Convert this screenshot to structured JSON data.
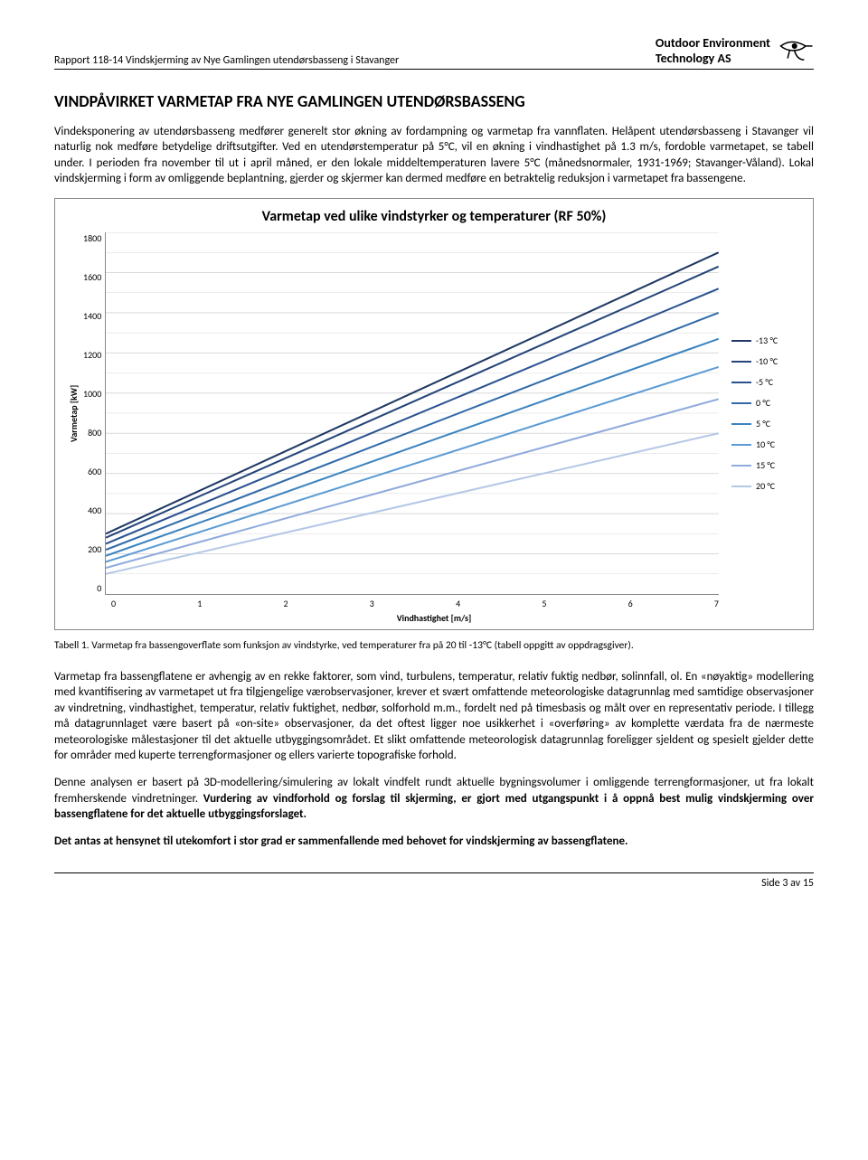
{
  "header": {
    "report_line": "Rapport 118-14 Vindskjerming av Nye Gamlingen utendørsbasseng i Stavanger",
    "company_line1": "Outdoor Environment",
    "company_line2": "Technology AS"
  },
  "section_title": "VINDPÅVIRKET VARMETAP FRA NYE GAMLINGEN UTENDØRSBASSENG",
  "intro": "Vindeksponering av utendørsbasseng medfører generelt stor økning av fordampning og varmetap fra vannflaten. Helåpent utendørsbasseng i Stavanger vil naturlig nok medføre betydelige driftsutgifter. Ved en utendørstemperatur på 5°C, vil en økning i vindhastighet på 1.3 m/s, fordoble varmetapet, se tabell under. I perioden fra november til ut i april måned, er den lokale middeltemperaturen lavere 5°C (månedsnormaler, 1931-1969; Stavanger-Våland). Lokal vindskjerming i form av omliggende beplantning, gjerder og skjermer kan dermed medføre en betraktelig reduksjon i varmetapet fra bassengene.",
  "chart": {
    "type": "line",
    "title": "Varmetap ved ulike vindstyrker og temperaturer (RF 50%)",
    "ylabel": "Varmetap [kW]",
    "xlabel": "Vindhastighet [m/s]",
    "title_fontsize": 16,
    "label_fontsize": 10,
    "tick_fontsize": 10,
    "xlim": [
      0,
      7
    ],
    "ylim": [
      0,
      1800
    ],
    "xtick_step": 1,
    "ytick_step": 200,
    "x_ticks": [
      "0",
      "1",
      "2",
      "3",
      "4",
      "5",
      "6",
      "7"
    ],
    "y_ticks": [
      "1800",
      "1600",
      "1400",
      "1200",
      "1000",
      "800",
      "600",
      "400",
      "200",
      "0"
    ],
    "grid_color": "#d9d9d9",
    "border_color": "#888888",
    "background_color": "#ffffff",
    "line_width": 2,
    "series": [
      {
        "label": "-13 °C",
        "color": "#1f3864",
        "y0": 300,
        "y7": 1700
      },
      {
        "label": "-10 °C",
        "color": "#24457a",
        "y0": 280,
        "y7": 1630
      },
      {
        "label": "-5 °C",
        "color": "#2a5291",
        "y0": 250,
        "y7": 1520
      },
      {
        "label": "0 °C",
        "color": "#2f6aa8",
        "y0": 220,
        "y7": 1400
      },
      {
        "label": "5 °C",
        "color": "#3b84c0",
        "y0": 190,
        "y7": 1270
      },
      {
        "label": "10 °C",
        "color": "#5b9bd5",
        "y0": 160,
        "y7": 1130
      },
      {
        "label": "15 °C",
        "color": "#8faadc",
        "y0": 130,
        "y7": 970
      },
      {
        "label": "20 °C",
        "color": "#b4c7e7",
        "y0": 100,
        "y7": 800
      }
    ]
  },
  "caption": "Tabell 1. Varmetap fra bassengoverflate som funksjon av vindstyrke, ved temperaturer fra på 20 til -13°C (tabell oppgitt av oppdragsgiver).",
  "para2": "Varmetap fra bassengflatene er avhengig av en rekke faktorer, som vind, turbulens, temperatur, relativ fuktig nedbør, solinnfall, ol. En «nøyaktig» modellering med kvantifisering av varmetapet ut fra tilgjengelige værobservasjoner, krever et svært omfattende meteorologiske datagrunnlag med samtidige observasjoner av vindretning, vindhastighet, temperatur, relativ fuktighet, nedbør, solforhold m.m., fordelt ned på timesbasis og målt over en representativ periode. I tillegg må datagrunnlaget være basert på «on-site» observasjoner, da det oftest ligger noe usikkerhet i «overføring» av komplette værdata fra de nærmeste meteorologiske målestasjoner til det aktuelle utbyggingsområdet. Et slikt omfattende meteorologisk datagrunnlag foreligger sjeldent og spesielt gjelder dette for områder med kuperte terrengformasjoner og ellers varierte topografiske forhold.",
  "para3a": "Denne analysen er basert på 3D-modellering/simulering av lokalt vindfelt rundt aktuelle bygningsvolumer i omliggende terrengformasjoner, ut fra lokalt fremherskende vindretninger. ",
  "para3b": "Vurdering av vindforhold og forslag til skjerming, er gjort med utgangspunkt i å oppnå best mulig vindskjerming over bassengflatene for det aktuelle utbyggingsforslaget.",
  "para4": "Det antas at hensynet til utekomfort i stor grad er sammenfallende med behovet for vindskjerming av bassengflatene.",
  "footer": "Side 3 av 15"
}
